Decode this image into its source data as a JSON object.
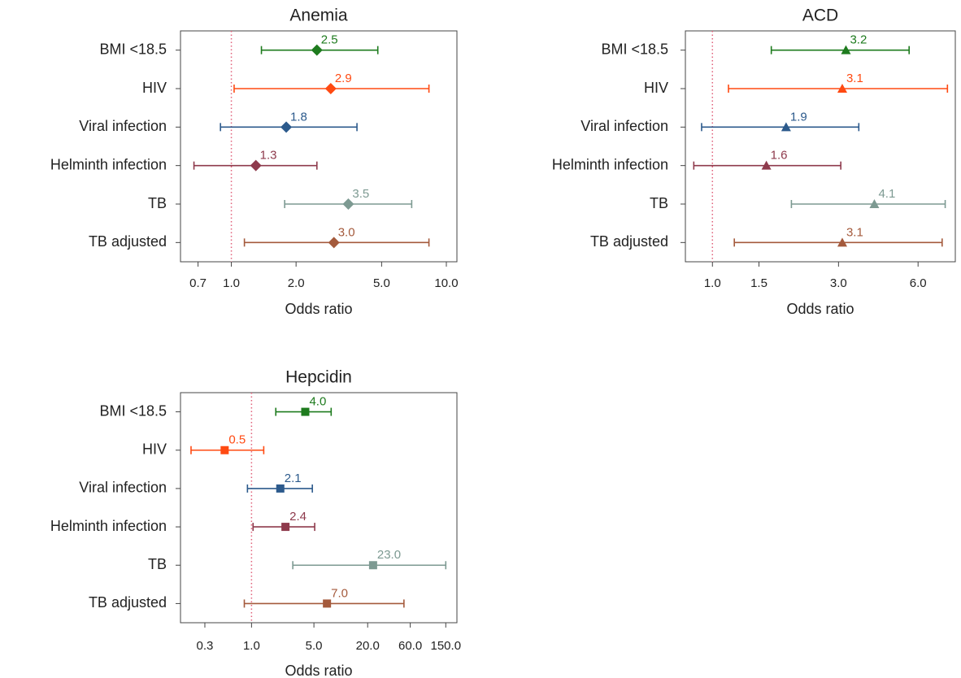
{
  "chart_data": [
    {
      "type": "forest",
      "title": "Anemia",
      "x_label": "Odds ratio",
      "xscale": "log",
      "marker": "diamond",
      "categories": [
        "BMI <18.5",
        "HIV",
        "Viral infection",
        "Helminth infection",
        "TB",
        "TB adjusted"
      ],
      "values": [
        2.5,
        2.9,
        1.8,
        1.3,
        3.5,
        3.0
      ],
      "value_labels": [
        "2.5",
        "2.9",
        "1.8",
        "1.3",
        "3.5",
        "3.0"
      ],
      "lower": [
        1.38,
        1.03,
        0.89,
        0.67,
        1.77,
        1.15
      ],
      "upper": [
        4.8,
        8.3,
        3.84,
        2.5,
        6.9,
        8.3
      ],
      "colors": [
        "#1e7b1e",
        "#ff4a12",
        "#2c5a8c",
        "#8e3a4c",
        "#7d9a92",
        "#a45a3c"
      ],
      "reference_line": 1,
      "xlim": [
        0.58,
        11.2
      ],
      "xticks": [
        0.7,
        {
          "value": 1,
          "label": "1.0"
        },
        {
          "value": 2,
          "label": "2.0"
        },
        {
          "value": 5,
          "label": "5.0"
        },
        {
          "value": 10,
          "label": "10.0"
        }
      ]
    },
    {
      "type": "forest",
      "title": "ACD",
      "x_label": "Odds ratio",
      "xscale": "log",
      "marker": "triangle",
      "categories": [
        "BMI <18.5",
        "HIV",
        "Viral infection",
        "Helminth infection",
        "TB",
        "TB adjusted"
      ],
      "values": [
        3.2,
        3.1,
        1.9,
        1.6,
        4.1,
        3.1
      ],
      "value_labels": [
        "3.2",
        "3.1",
        "1.9",
        "1.6",
        "4.1",
        "3.1"
      ],
      "lower": [
        1.67,
        1.15,
        0.91,
        0.85,
        1.99,
        1.21
      ],
      "upper": [
        5.55,
        7.75,
        3.58,
        3.06,
        7.6,
        7.4
      ],
      "colors": [
        "#1e7b1e",
        "#ff4a12",
        "#2c5a8c",
        "#8e3a4c",
        "#7d9a92",
        "#a45a3c"
      ],
      "reference_line": 1,
      "xlim": [
        0.79,
        8.3
      ],
      "xticks": [
        {
          "value": 1,
          "label": "1.0"
        },
        1.5,
        {
          "value": 3,
          "label": "3.0"
        },
        {
          "value": 6,
          "label": "6.0"
        }
      ]
    },
    {
      "type": "forest",
      "title": "Hepcidin",
      "x_label": "Odds ratio",
      "xscale": "log",
      "marker": "square",
      "categories": [
        "BMI <18.5",
        "HIV",
        "Viral infection",
        "Helminth infection",
        "TB",
        "TB adjusted"
      ],
      "values": [
        4.0,
        0.5,
        2.1,
        2.4,
        23.0,
        7.0
      ],
      "value_labels": [
        "4.0",
        "0.5",
        "2.1",
        "2.4",
        "23.0",
        "7.0"
      ],
      "lower": [
        1.87,
        0.21,
        0.9,
        1.04,
        2.9,
        0.83
      ],
      "upper": [
        7.8,
        1.37,
        4.8,
        5.1,
        150,
        51
      ],
      "colors": [
        "#1e7b1e",
        "#ff4a12",
        "#2c5a8c",
        "#8e3a4c",
        "#7d9a92",
        "#a45a3c"
      ],
      "reference_line": 1,
      "xlim": [
        0.16,
        200
      ],
      "xticks": [
        0.3,
        {
          "value": 1,
          "label": "1.0"
        },
        {
          "value": 5,
          "label": "5.0"
        },
        {
          "value": 20,
          "label": "20.0"
        },
        {
          "value": 60,
          "label": "60.0"
        },
        {
          "value": 150,
          "label": "150.0"
        }
      ]
    }
  ]
}
